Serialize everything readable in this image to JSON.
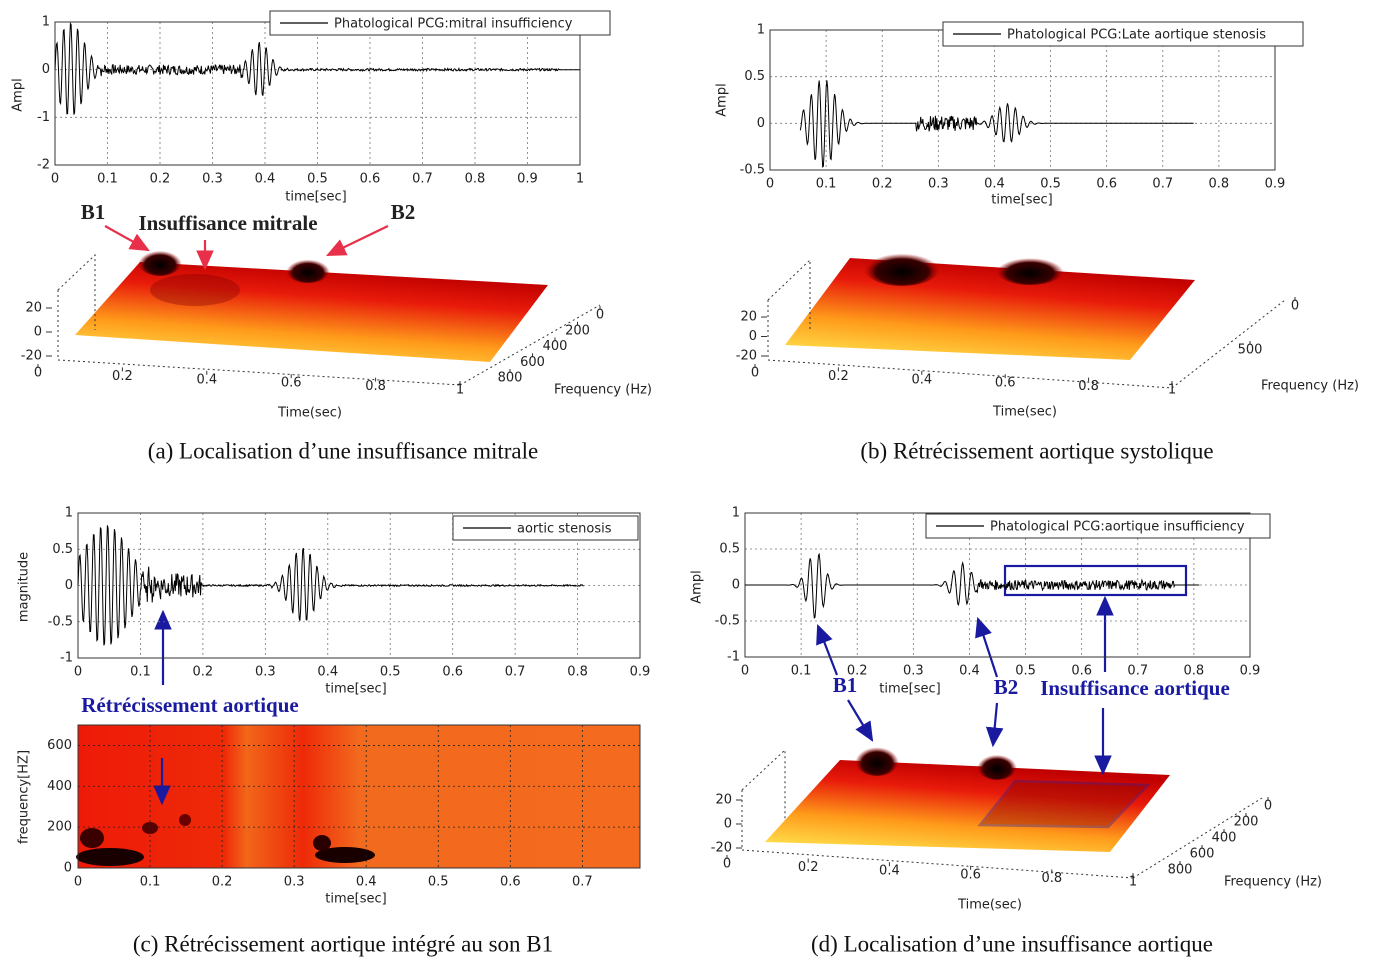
{
  "panels": [
    {
      "caption": "(a) Localisation d’une insuffisance mitrale",
      "waveform": {
        "legend": "Phatological PCG:mitral insufficiency",
        "xlabel": "time[sec]",
        "ylabel": "Ampl",
        "xlim": [
          0,
          1
        ],
        "xticks": [
          0,
          0.1,
          0.2,
          0.3,
          0.4,
          0.5,
          0.6,
          0.7,
          0.8,
          0.9,
          1
        ],
        "ylim": [
          -2,
          1
        ],
        "yticks": [
          1,
          0,
          -1,
          -2
        ]
      },
      "surface": {
        "xlabel": "Time(sec)",
        "ylabel": "Frequency (Hz)",
        "zticks": [
          20,
          0,
          -20
        ],
        "xticks": [
          0,
          0.2,
          0.4,
          0.6,
          0.8,
          1
        ],
        "yticks": [
          0,
          200,
          400,
          600,
          800
        ]
      },
      "annotations": [
        "B1",
        "Insuffisance mitrale",
        "B2"
      ]
    },
    {
      "caption": "(b) Rétrécissement aortique systolique",
      "waveform": {
        "legend": "Phatological PCG:Late aortique stenosis",
        "xlabel": "time[sec]",
        "ylabel": "Ampl",
        "xlim": [
          0,
          0.9
        ],
        "xticks": [
          0,
          0.1,
          0.2,
          0.3,
          0.4,
          0.5,
          0.6,
          0.7,
          0.8,
          0.9
        ],
        "ylim": [
          -0.5,
          1
        ],
        "yticks": [
          1,
          0.5,
          0,
          -0.5
        ]
      },
      "surface": {
        "xlabel": "Time(sec)",
        "ylabel": "Frequency (Hz)",
        "zticks": [
          20,
          0,
          -20
        ],
        "xticks": [
          0,
          0.2,
          0.4,
          0.6,
          0.8,
          1
        ],
        "yticks": [
          0,
          500
        ]
      }
    },
    {
      "caption": "(c) Rétrécissement aortique intégré au son B1",
      "waveform": {
        "legend": "aortic stenosis",
        "xlabel": "time[sec]",
        "ylabel": "magnitude",
        "xlim": [
          0,
          0.9
        ],
        "xticks": [
          0,
          0.1,
          0.2,
          0.3,
          0.4,
          0.5,
          0.6,
          0.7,
          0.8,
          0.9
        ],
        "ylim": [
          -1,
          1
        ],
        "yticks": [
          1,
          0.5,
          0,
          -0.5,
          -1
        ]
      },
      "spectrogram": {
        "xlabel": "time[sec]",
        "ylabel": "frequency[HZ]",
        "xlim": [
          0,
          0.78
        ],
        "xticks": [
          0,
          0.1,
          0.2,
          0.3,
          0.4,
          0.5,
          0.6,
          0.7
        ],
        "ylim": [
          0,
          700
        ],
        "yticks": [
          0,
          200,
          400,
          600
        ]
      },
      "annotations": [
        "Rétrécissement aortique"
      ]
    },
    {
      "caption": "(d) Localisation d’une insuffisance aortique",
      "waveform": {
        "legend": "Phatological PCG:aortique insufficiency",
        "xlabel": "time[sec]",
        "ylabel": "Ampl",
        "xlim": [
          0,
          0.9
        ],
        "xticks": [
          0,
          0.1,
          0.2,
          0.3,
          0.4,
          0.5,
          0.6,
          0.7,
          0.8,
          0.9
        ],
        "ylim": [
          -1,
          1
        ],
        "yticks": [
          1,
          0.5,
          0,
          -0.5,
          -1
        ]
      },
      "surface": {
        "xlabel": "Time(sec)",
        "ylabel": "Frequency (Hz)",
        "zticks": [
          20,
          0,
          -20
        ],
        "xticks": [
          0,
          0.2,
          0.4,
          0.6,
          0.8,
          1
        ],
        "yticks": [
          0,
          200,
          400,
          600,
          800
        ]
      },
      "annotations": [
        "B1",
        "B2",
        "Insuffisance aortique"
      ]
    }
  ]
}
